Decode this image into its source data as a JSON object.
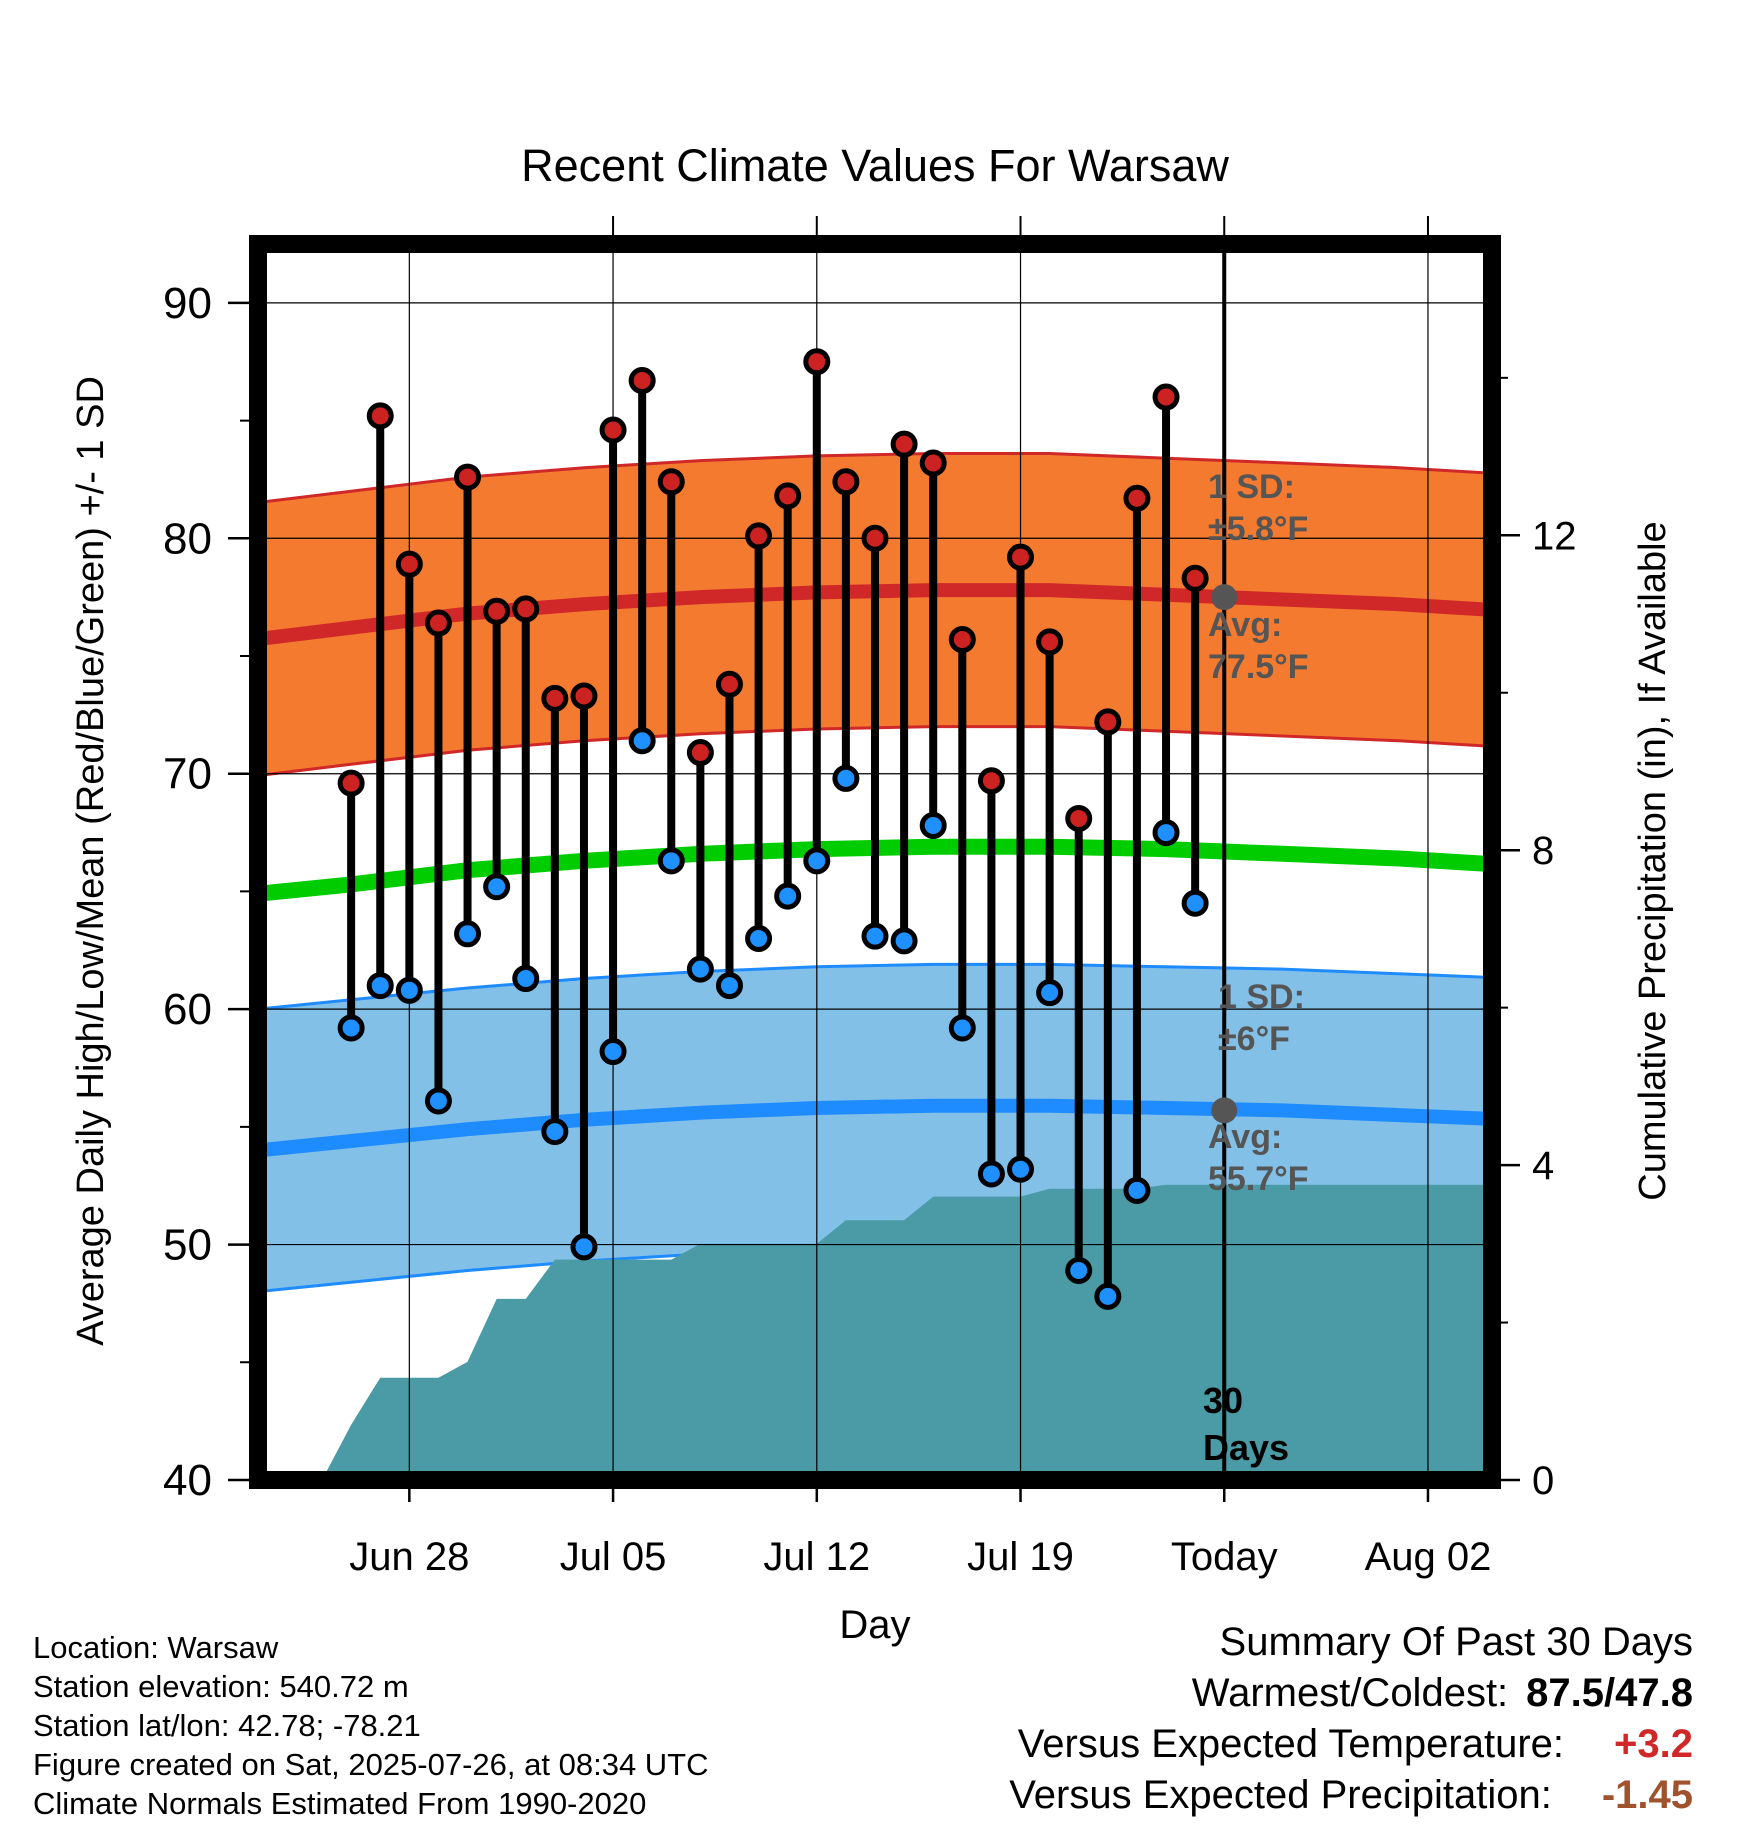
{
  "chart_data": {
    "type": "line",
    "title": "Recent Climate Values For Warsaw",
    "xlabel": "Day",
    "ylabel": "Average Daily High/Low/Mean (Red/Blue/Green) +/- 1 SD",
    "y2label": "Cumulative Precipitation (in), If Available",
    "ylim": [
      40,
      92.5
    ],
    "y_ticks": [
      40,
      50,
      60,
      70,
      80,
      90
    ],
    "y2lim": [
      0,
      15.7
    ],
    "y2_ticks": [
      0,
      4,
      8,
      12
    ],
    "x_range_days": [
      -33.2,
      9.2
    ],
    "x_tick_labels": [
      {
        "day": -28,
        "label": "Jun 28"
      },
      {
        "day": -21,
        "label": "Jul 05"
      },
      {
        "day": -14,
        "label": "Jul 12"
      },
      {
        "day": -7,
        "label": "Jul 19"
      },
      {
        "day": 0,
        "label": "Today"
      },
      {
        "day": 7,
        "label": "Aug 02"
      }
    ],
    "grid": true,
    "today_marker_day": 0,
    "days": [
      -30,
      -29,
      -28,
      -27,
      -26,
      -25,
      -24,
      -23,
      -22,
      -21,
      -20,
      -19,
      -18,
      -17,
      -16,
      -15,
      -14,
      -13,
      -12,
      -11,
      -10,
      -9,
      -8,
      -7,
      -6,
      -5,
      -4,
      -3,
      -2,
      -1
    ],
    "series": [
      {
        "name": "High",
        "color": "#cc2222",
        "values": [
          69.6,
          85.2,
          78.9,
          76.4,
          82.6,
          76.9,
          77.0,
          73.2,
          73.3,
          84.6,
          86.7,
          82.4,
          70.9,
          73.8,
          80.1,
          81.8,
          87.5,
          82.4,
          80.0,
          84.0,
          83.2,
          75.7,
          69.7,
          79.2,
          75.6,
          68.1,
          72.2,
          81.7,
          86.0,
          78.3
        ]
      },
      {
        "name": "Low",
        "color": "#1e90ff",
        "values": [
          59.2,
          61.0,
          60.8,
          56.1,
          63.2,
          65.2,
          61.3,
          54.8,
          49.9,
          58.2,
          71.4,
          66.3,
          61.7,
          61.0,
          63.0,
          64.8,
          66.3,
          69.8,
          63.1,
          62.9,
          67.8,
          59.2,
          53.0,
          53.2,
          60.7,
          48.9,
          47.8,
          52.3,
          67.5,
          64.5
        ]
      }
    ],
    "normals": {
      "days": [
        -34,
        -30,
        -26,
        -22,
        -18,
        -14,
        -10,
        -6,
        -2,
        2,
        6,
        10
      ],
      "high_avg": [
        75.6,
        76.2,
        76.8,
        77.2,
        77.5,
        77.7,
        77.8,
        77.8,
        77.6,
        77.4,
        77.2,
        76.9
      ],
      "high_sd": 5.8,
      "low_avg": [
        53.9,
        54.4,
        54.9,
        55.3,
        55.6,
        55.8,
        55.9,
        55.9,
        55.8,
        55.7,
        55.5,
        55.3
      ],
      "low_sd": 6.0,
      "mean_avg": [
        64.8,
        65.3,
        65.9,
        66.3,
        66.6,
        66.8,
        66.9,
        66.9,
        66.8,
        66.6,
        66.4,
        66.1
      ],
      "today_high_avg": 77.5,
      "today_low_avg": 55.7
    },
    "precipitation": {
      "days": [
        -31,
        -30,
        -29,
        -28,
        -27,
        -26,
        -25,
        -24,
        -23,
        -22,
        -21,
        -20,
        -19,
        -18,
        -17,
        -16,
        -15,
        -14,
        -13,
        -12,
        -11,
        -10,
        -9,
        -8,
        -7,
        -6,
        -5,
        -4,
        -3,
        -2,
        -1,
        0,
        9.2
      ],
      "cumulative": [
        0,
        0.7,
        1.3,
        1.3,
        1.3,
        1.5,
        2.3,
        2.3,
        2.8,
        2.8,
        2.8,
        2.8,
        2.8,
        3.0,
        3.0,
        3.0,
        3.0,
        3.0,
        3.3,
        3.3,
        3.3,
        3.6,
        3.6,
        3.6,
        3.6,
        3.7,
        3.7,
        3.7,
        3.7,
        3.75,
        3.75,
        3.75,
        3.75
      ],
      "color": "#4a9ba5"
    },
    "annotations": {
      "high_sd_line1": "1 SD:",
      "high_sd_line2": "±5.8°F",
      "high_avg_line1": "Avg:",
      "high_avg_line2": "77.5°F",
      "low_sd_line1": "1 SD:",
      "low_sd_line2": "±6°F",
      "low_avg_line1": "Avg:",
      "low_avg_line2": "55.7°F",
      "precip_line1": "30",
      "precip_line2": "Days"
    },
    "colors": {
      "high_band": "#f47a30",
      "high_line": "#d02828",
      "low_band": "#82c0e8",
      "low_line": "#1e8cff",
      "mean_line": "#00cc00",
      "annotation_text": "#555555"
    }
  },
  "info": {
    "location": "Location: Warsaw",
    "elevation": "Station elevation: 540.72 m",
    "latlon": "Station lat/lon: 42.78; -78.21",
    "created": "Figure created on Sat, 2025-07-26, at 08:34 UTC",
    "normals": "Climate Normals Estimated From 1990-2020"
  },
  "summary": {
    "title": "Summary Of Past 30 Days",
    "warmest_label": "Warmest/Coldest:",
    "warmest_value": "87.5/47.8",
    "temp_label": "Versus Expected Temperature:",
    "temp_value": "+3.2",
    "temp_color": "#d02828",
    "precip_label": "Versus Expected Precipitation:",
    "precip_value": "-1.45",
    "precip_color": "#a0522d"
  }
}
